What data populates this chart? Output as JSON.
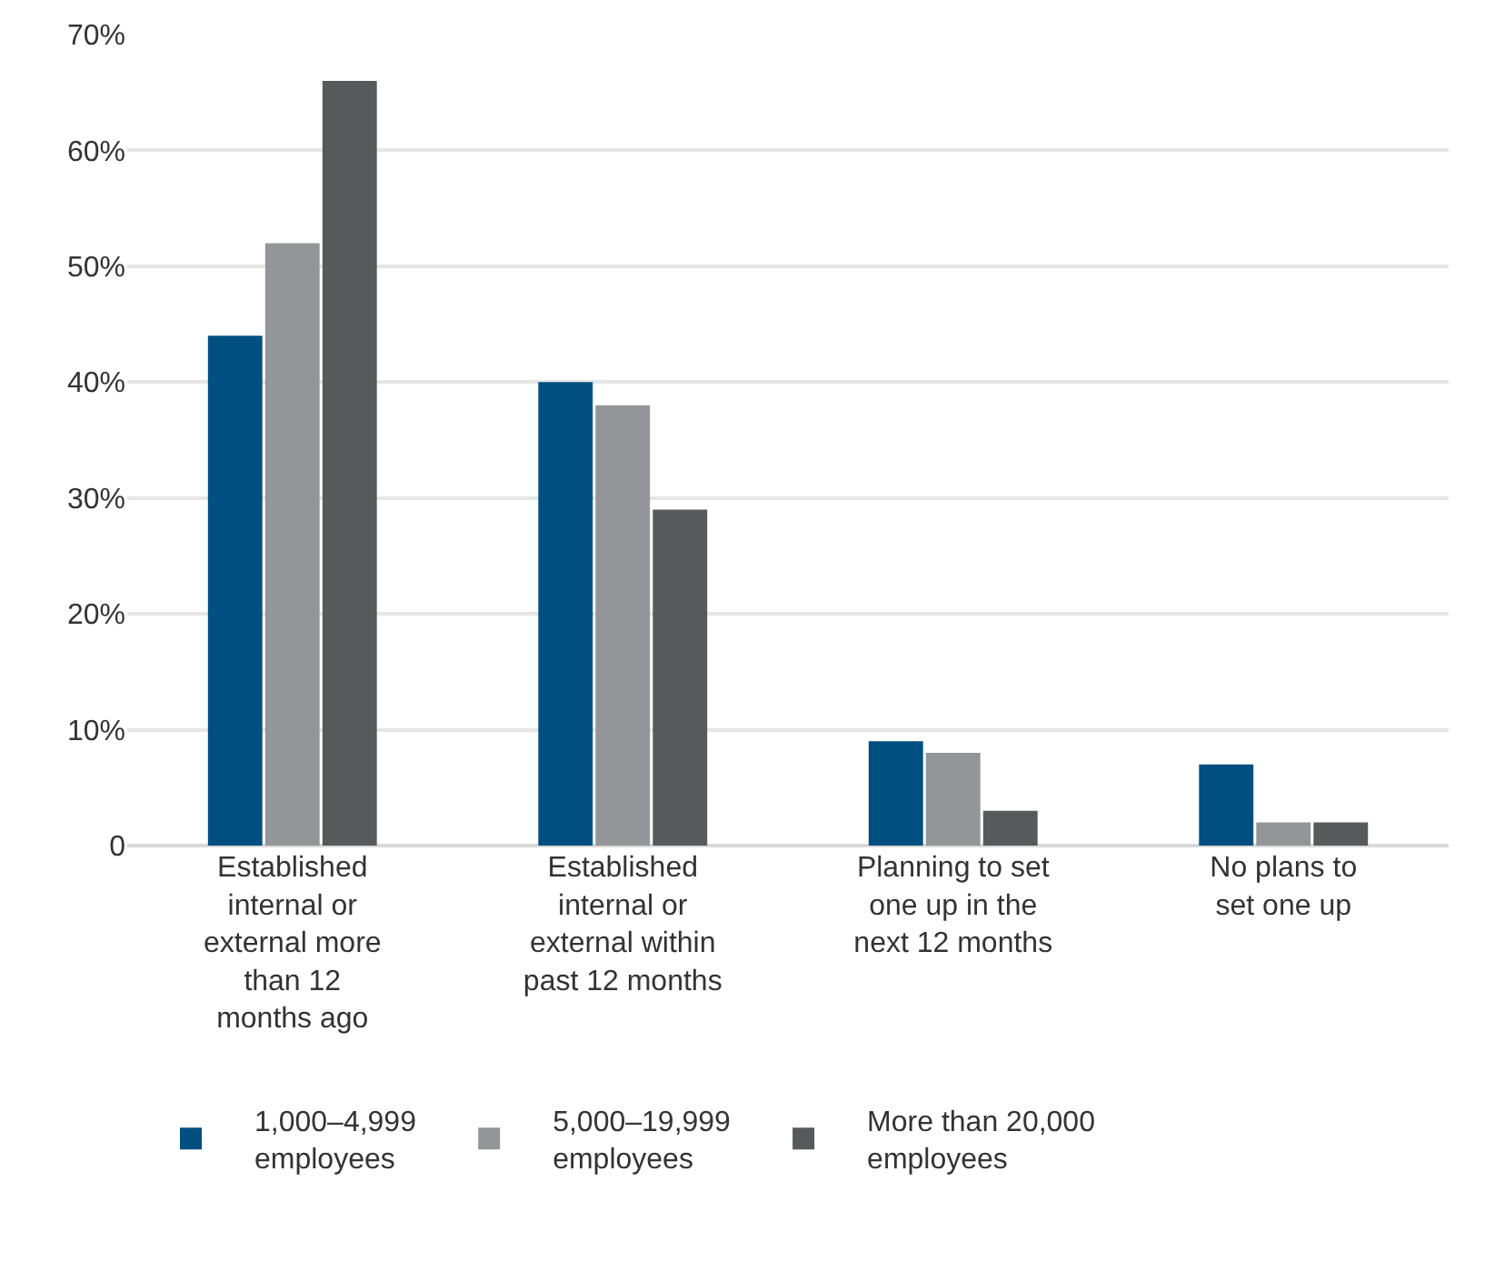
{
  "chart_data": {
    "type": "bar",
    "categories": [
      "Established\ninternal or\nexternal more\nthan 12\nmonths ago",
      "Established\ninternal or\nexternal within\npast 12 months",
      "Planning to set\none up in the\nnext 12 months",
      "No plans to\nset one up"
    ],
    "series": [
      {
        "name": "1,000–4,999\nemployees",
        "color": "#004f80",
        "values": [
          44,
          40,
          9,
          7
        ]
      },
      {
        "name": "5,000–19,999\nemployees",
        "color": "#939598",
        "values": [
          52,
          38,
          8,
          2
        ]
      },
      {
        "name": "More than 20,000\nemployees",
        "color": "#58595b",
        "values": [
          66,
          29,
          3,
          2
        ]
      }
    ],
    "ylim": [
      0,
      70
    ],
    "yticks": [
      0,
      {
        "value": 10,
        "label": "10%"
      },
      {
        "value": 20,
        "label": "20%"
      },
      {
        "value": 30,
        "label": "30%"
      },
      {
        "value": 40,
        "label": "40%"
      },
      {
        "value": 50,
        "label": "50%"
      },
      {
        "value": 60,
        "label": "60%"
      },
      {
        "value": 70,
        "label": "70%"
      }
    ],
    "grid": "y",
    "legend": "bottom"
  }
}
